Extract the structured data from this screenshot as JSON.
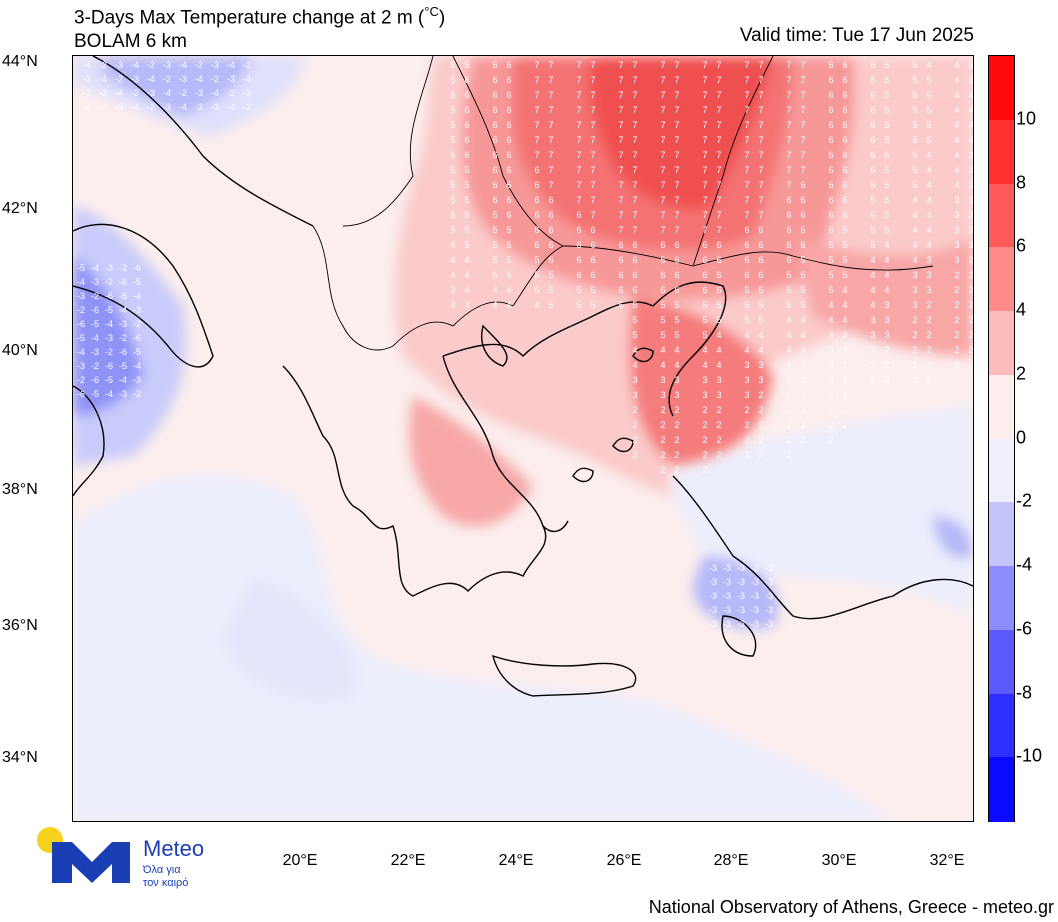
{
  "header": {
    "title_line1": "3-Days Max Temperature change at 2 m (",
    "title_unit": "°C",
    "title_close": ")",
    "title_line2": "BOLAM 6 km",
    "valid_time": "Valid time: Tue 17 Jun 2025"
  },
  "axes": {
    "lat_labels": [
      "44°N",
      "42°N",
      "40°N",
      "38°N",
      "36°N",
      "34°N"
    ],
    "lon_labels": [
      "20°E",
      "22°E",
      "24°E",
      "26°E",
      "28°E",
      "30°E",
      "32°E"
    ]
  },
  "colorbar": {
    "labels": [
      "10",
      "8",
      "6",
      "4",
      "2",
      "0",
      "-2",
      "-4",
      "-6",
      "-8",
      "-10"
    ],
    "colors": [
      "#ff0a0a",
      "#ff3030",
      "#ff5a5a",
      "#ff8a8a",
      "#fdbcbc",
      "#fdeeed",
      "#eeeefc",
      "#c4c4fb",
      "#8c8cfb",
      "#5a5afd",
      "#2f2ffd",
      "#0a0aff"
    ]
  },
  "logo": {
    "name": "Meteo",
    "tagline_line1": "Όλα για",
    "tagline_line2": "τον καιρό",
    "colors": {
      "sun": "#f7d21c",
      "mark": "#1a3fb4"
    }
  },
  "footer": {
    "credit": "National Observatory of Athens, Greece - meteo.gr"
  },
  "map_labels": {
    "warm_values": [
      "7",
      "6",
      "5",
      "4",
      "3",
      "2"
    ],
    "cold_values": [
      "-2",
      "-3",
      "-4",
      "-5",
      "-6"
    ]
  }
}
